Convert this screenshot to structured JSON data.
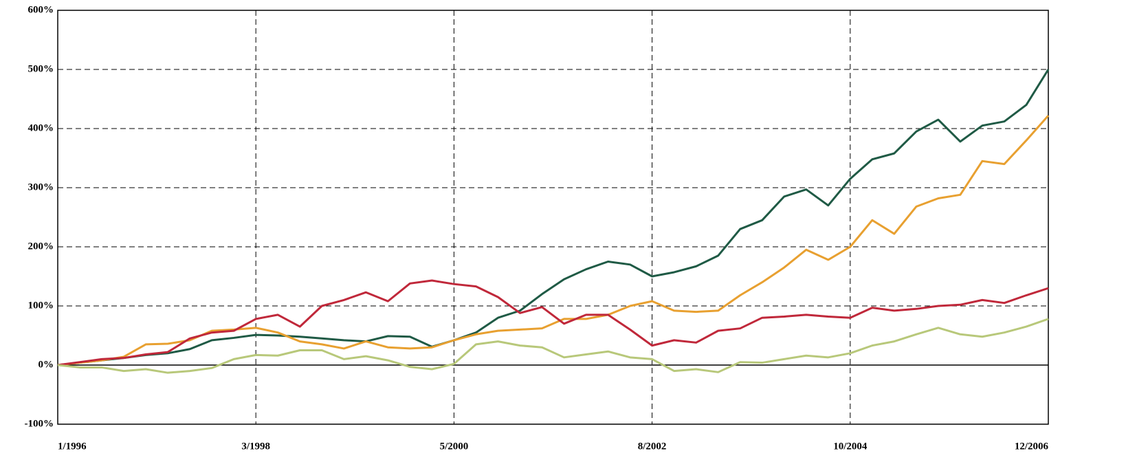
{
  "chart_data": {
    "type": "line",
    "x": [
      "1/1996",
      null,
      null,
      null,
      null,
      null,
      null,
      null,
      null,
      "3/1998",
      null,
      null,
      null,
      null,
      null,
      null,
      null,
      null,
      "5/2000",
      null,
      null,
      null,
      null,
      null,
      null,
      null,
      null,
      "8/2002",
      null,
      null,
      null,
      null,
      null,
      null,
      null,
      null,
      "10/2004",
      null,
      null,
      null,
      null,
      null,
      null,
      null,
      null,
      "12/2006"
    ],
    "series": [
      {
        "color": "#1f5a45",
        "values": [
          0,
          4,
          8,
          12,
          17,
          20,
          27,
          42,
          46,
          51,
          50,
          48,
          45,
          42,
          40,
          49,
          48,
          31,
          42,
          55,
          80,
          92,
          120,
          145,
          162,
          175,
          170,
          150,
          157,
          167,
          185,
          230,
          245,
          285,
          297,
          270,
          315,
          348,
          358,
          395,
          415,
          378,
          405,
          412,
          440,
          500
        ]
      },
      {
        "color": "#e8a030",
        "values": [
          0,
          4,
          8,
          14,
          35,
          36,
          42,
          58,
          60,
          63,
          55,
          40,
          35,
          28,
          40,
          30,
          28,
          30,
          42,
          52,
          58,
          60,
          62,
          78,
          78,
          85,
          100,
          108,
          92,
          90,
          92,
          118,
          140,
          165,
          195,
          178,
          200,
          245,
          222,
          268,
          282,
          288,
          345,
          340,
          380,
          422
        ]
      },
      {
        "color": "#c0283a",
        "values": [
          0,
          5,
          10,
          12,
          18,
          22,
          45,
          55,
          58,
          78,
          85,
          65,
          100,
          110,
          123,
          108,
          138,
          143,
          137,
          133,
          115,
          88,
          98,
          70,
          85,
          85,
          60,
          33,
          42,
          38,
          58,
          62,
          80,
          82,
          85,
          82,
          80,
          97,
          92,
          95,
          100,
          102,
          110,
          105,
          118,
          130
        ]
      },
      {
        "color": "#b8c87a",
        "values": [
          0,
          -4,
          -4,
          -10,
          -7,
          -13,
          -10,
          -5,
          10,
          17,
          16,
          25,
          25,
          10,
          15,
          8,
          -3,
          -7,
          2,
          35,
          40,
          33,
          30,
          13,
          18,
          23,
          13,
          10,
          -10,
          -7,
          -12,
          5,
          4,
          10,
          16,
          13,
          20,
          33,
          40,
          52,
          63,
          52,
          48,
          55,
          65,
          78
        ]
      }
    ],
    "ylim": [
      -100,
      600
    ],
    "yticks": [
      {
        "value": -100,
        "label": "-100%"
      },
      {
        "value": 0,
        "label": "0%"
      },
      {
        "value": 100,
        "label": "100%"
      },
      {
        "value": 200,
        "label": "200%"
      },
      {
        "value": 300,
        "label": "300%"
      },
      {
        "value": 400,
        "label": "400%"
      },
      {
        "value": 500,
        "label": "500%"
      },
      {
        "value": 600,
        "label": "600%"
      }
    ],
    "grid": true
  }
}
